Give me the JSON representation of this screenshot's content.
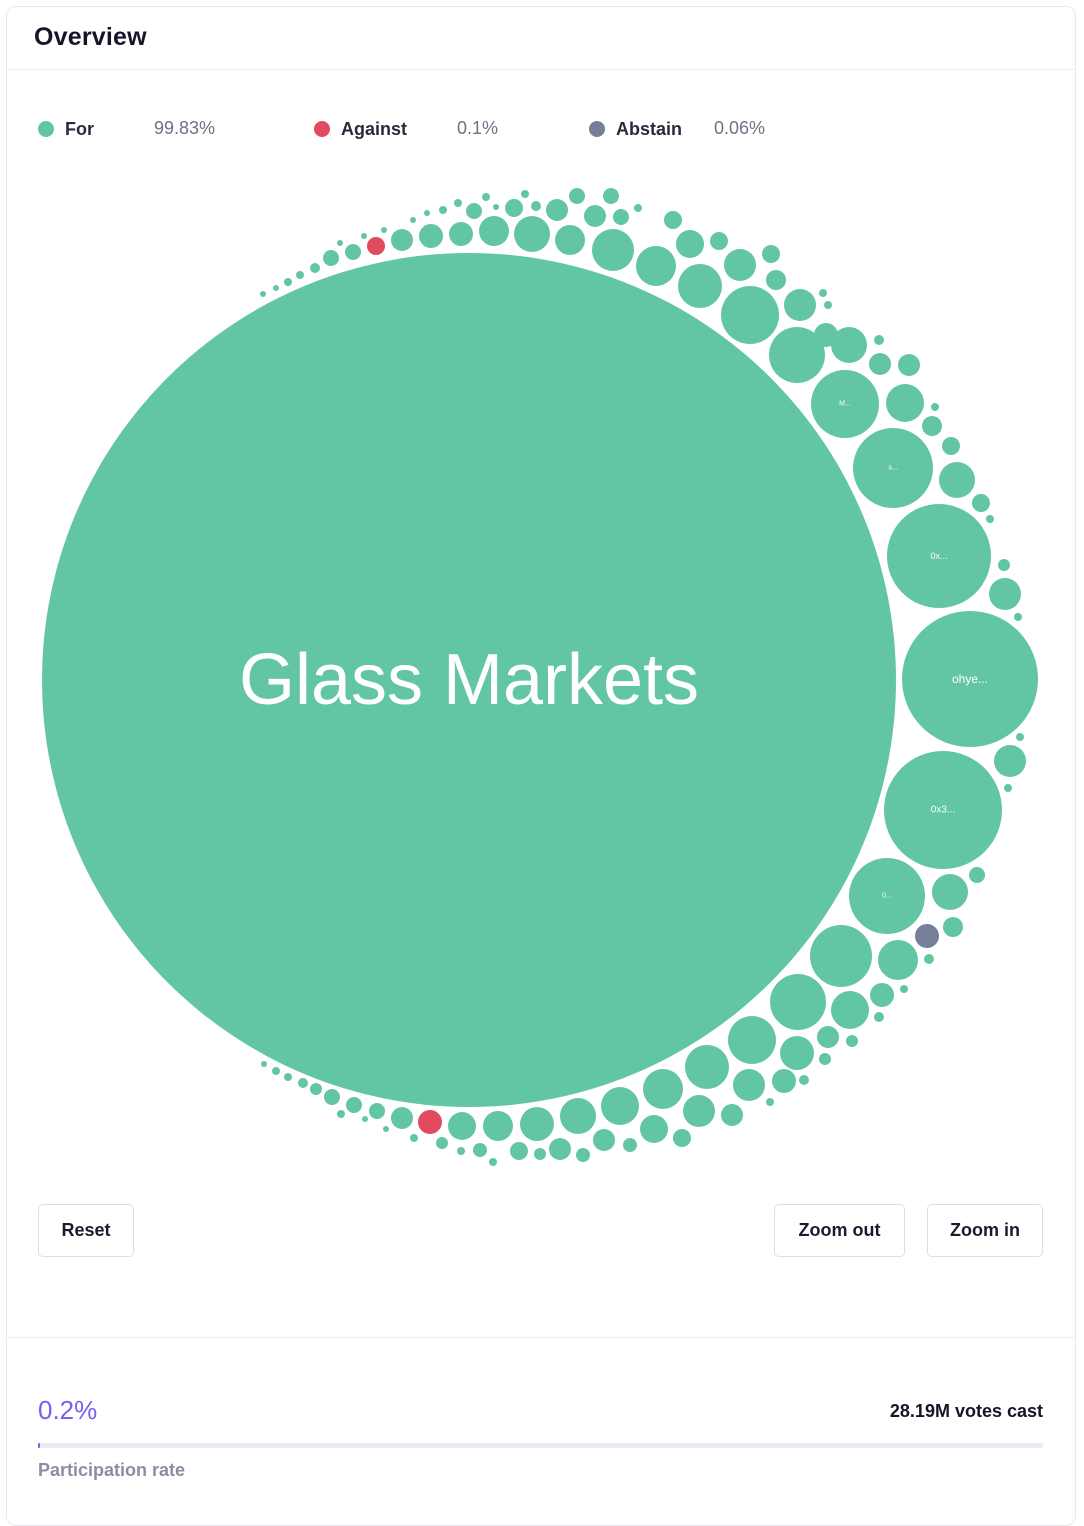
{
  "header": {
    "title": "Overview"
  },
  "legend": [
    {
      "label": "For",
      "percent": "99.83%",
      "color": "#62c6a3"
    },
    {
      "label": "Against",
      "percent": "0.1%",
      "color": "#e04b60"
    },
    {
      "label": "Abstain",
      "percent": "0.06%",
      "color": "#757f98"
    }
  ],
  "bubbles": [
    {
      "label": "Glass Markets",
      "choice": "for"
    },
    {
      "label": "ohye...",
      "choice": "for"
    },
    {
      "label": "0x...",
      "choice": "for"
    },
    {
      "label": "0x3...",
      "choice": "for"
    },
    {
      "label": "s...",
      "choice": "for"
    },
    {
      "label": "M...",
      "choice": "for"
    },
    {
      "label": "0...",
      "choice": "for"
    },
    {
      "label": "",
      "choice": "against"
    },
    {
      "label": "",
      "choice": "against"
    },
    {
      "label": "",
      "choice": "abstain"
    }
  ],
  "buttons": {
    "reset": "Reset",
    "zoom_out": "Zoom out",
    "zoom_in": "Zoom in"
  },
  "participation": {
    "rate": "0.2%",
    "rate_fraction": 0.002,
    "votes_cast": "28.19M votes cast",
    "label": "Participation rate"
  }
}
